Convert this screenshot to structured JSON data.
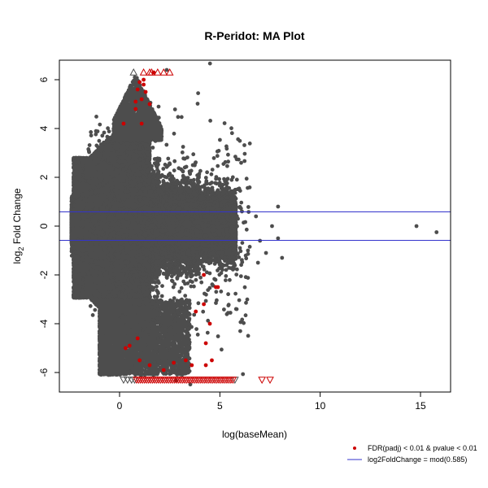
{
  "chart_data": {
    "type": "scatter",
    "title": "R-Peridot: MA Plot",
    "xlabel": "log(baseMean)",
    "ylabel_main": "log",
    "ylabel_sub": "2",
    "ylabel_rest": " Fold Change",
    "xlim": [
      -3,
      16.5
    ],
    "ylim": [
      -6.8,
      6.8
    ],
    "x_ticks": [
      0,
      5,
      10,
      15
    ],
    "x_tick_labels": [
      "0",
      "5",
      "10",
      "15"
    ],
    "y_ticks": [
      -6,
      -4,
      -2,
      0,
      2,
      4,
      6
    ],
    "y_tick_labels": [
      "-6",
      "-4",
      "-2",
      "0",
      "2",
      "4",
      "6"
    ],
    "grid": false,
    "legend_position": "bottom-right",
    "threshold_lines": [
      0.585,
      -0.585
    ],
    "colors": {
      "non_significant": "#4d4d4d",
      "significant": "#cc0000",
      "threshold": "#3333cc"
    },
    "legend": [
      {
        "label": "FDR(padj) < 0.01 & pvalue < 0.01",
        "kind": "point",
        "color": "#cc0000"
      },
      {
        "label": "log2FoldChange = mod(0.585)",
        "kind": "line",
        "color": "#3333cc"
      }
    ],
    "significant_points": [
      [
        0.3,
        -5.0
      ],
      [
        0.5,
        -4.9
      ],
      [
        0.9,
        -4.6
      ],
      [
        1.0,
        -5.5
      ],
      [
        1.5,
        -5.7
      ],
      [
        2.2,
        -5.9
      ],
      [
        2.7,
        -5.6
      ],
      [
        3.3,
        -5.5
      ],
      [
        3.6,
        -5.7
      ],
      [
        4.3,
        -5.7
      ],
      [
        4.6,
        -5.5
      ],
      [
        4.3,
        -4.8
      ],
      [
        4.5,
        -4.0
      ],
      [
        3.8,
        -3.5
      ],
      [
        4.2,
        -3.2
      ],
      [
        4.2,
        -2.0
      ],
      [
        4.8,
        -2.5
      ],
      [
        4.9,
        -2.5
      ],
      [
        1.2,
        5.8
      ],
      [
        1.3,
        5.5
      ],
      [
        1.1,
        5.2
      ],
      [
        0.8,
        4.8
      ],
      [
        1.1,
        4.2
      ],
      [
        0.2,
        4.2
      ],
      [
        0.8,
        5.1
      ],
      [
        1.5,
        5.0
      ],
      [
        1.7,
        6.3
      ],
      [
        1.2,
        6.0
      ],
      [
        0.9,
        5.6
      ],
      [
        1.0,
        5.9
      ]
    ],
    "far_points": [
      [
        14.8,
        0.0
      ],
      [
        15.8,
        -0.25
      ],
      [
        7.9,
        0.8
      ],
      [
        7.9,
        -0.5
      ],
      [
        8.1,
        -1.3
      ],
      [
        7.3,
        -1.1
      ],
      [
        7.6,
        0.0
      ],
      [
        6.8,
        0.4
      ],
      [
        7.0,
        -0.6
      ],
      [
        6.4,
        -1.0
      ],
      [
        6.9,
        -1.5
      ],
      [
        6.0,
        -0.9
      ],
      [
        6.1,
        0.6
      ],
      [
        5.9,
        0.3
      ]
    ],
    "offscale_up": {
      "grey": [
        0.7
      ],
      "red": [
        1.2,
        1.5,
        1.6,
        1.9,
        2.2,
        2.5
      ]
    },
    "offscale_down": {
      "grey": [
        0.2,
        0.4,
        0.6,
        0.75,
        5.75
      ],
      "red": [
        0.85,
        0.95,
        1.05,
        1.15,
        1.25,
        1.35,
        1.45,
        1.55,
        1.65,
        1.75,
        1.85,
        1.95,
        2.05,
        2.15,
        2.25,
        2.35,
        2.45,
        2.55,
        2.65,
        2.75,
        2.85,
        2.95,
        3.05,
        3.15,
        3.25,
        3.35,
        3.45,
        3.55,
        3.65,
        3.75,
        3.85,
        3.95,
        4.05,
        4.15,
        4.25,
        4.35,
        4.45,
        4.55,
        4.65,
        4.75,
        4.85,
        4.95,
        5.05,
        5.15,
        5.25,
        5.35,
        5.45,
        5.55,
        5.65,
        7.1,
        7.5
      ]
    }
  }
}
